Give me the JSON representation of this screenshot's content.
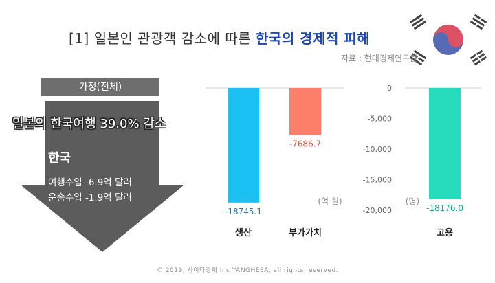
{
  "title": {
    "prefix": "[1] 일본인 관광객 감소에 따른 ",
    "highlight": "한국의 경제적 피해"
  },
  "source": "자료 : 현대경제연구원",
  "assumption": "가정(전체)",
  "headline": "일본의 한국여행 39.0% 감소",
  "korea": {
    "title": "한국",
    "lines": [
      "여행수입 -6.9억 달러",
      "운송수입 -1.9억 달러"
    ]
  },
  "footer": "© 2019, 사이다경제 Inc YANGHEEA, all rights reserved.",
  "colors": {
    "production": "#1bc0f2",
    "value_added": "#fd7f6a",
    "employment": "#27dcbd",
    "arrow": "#5c5c5c",
    "title_highlight": "#1a47b8"
  },
  "chart_data": [
    {
      "type": "bar",
      "categories": [
        "생산",
        "부가가치"
      ],
      "values": [
        -18745.1,
        -7686.7
      ],
      "value_labels": [
        "-18745.1",
        "-7686.7"
      ],
      "unit": "(억 원)",
      "ylim": [
        -20000,
        0
      ]
    },
    {
      "type": "bar",
      "categories": [
        "고용"
      ],
      "values": [
        -18176.0
      ],
      "value_labels": [
        "-18176.0"
      ],
      "unit": "(명)",
      "ylim": [
        -20000,
        0
      ],
      "yticks": [
        0,
        -5000,
        -10000,
        -15000,
        -20000
      ],
      "ytick_labels": [
        "0",
        "-5,000",
        "-10,000",
        "-15,000",
        "-20,000"
      ]
    }
  ]
}
